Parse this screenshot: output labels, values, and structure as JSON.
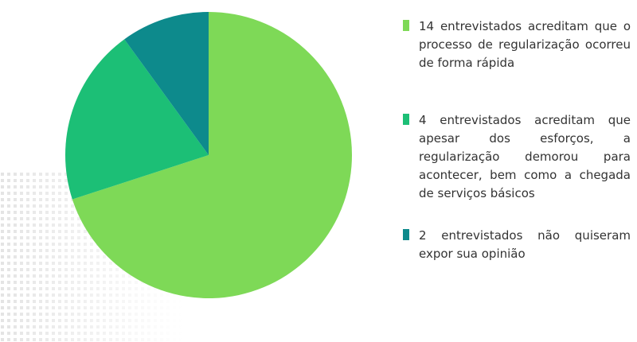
{
  "chart_data": {
    "type": "pie",
    "categories": [
      "14 entrevistados acreditam que o processo de regularização ocorreu de forma rápida",
      "4 entrevistados acreditam que apesar dos esforços, a regularização demorou para acontecer, bem como a chegada de serviços básicos",
      "2 entrevistados não quiseram expor sua opinião"
    ],
    "values": [
      14,
      4,
      2
    ],
    "colors": [
      "#7ed957",
      "#1cbf76",
      "#0d8a8c"
    ]
  }
}
